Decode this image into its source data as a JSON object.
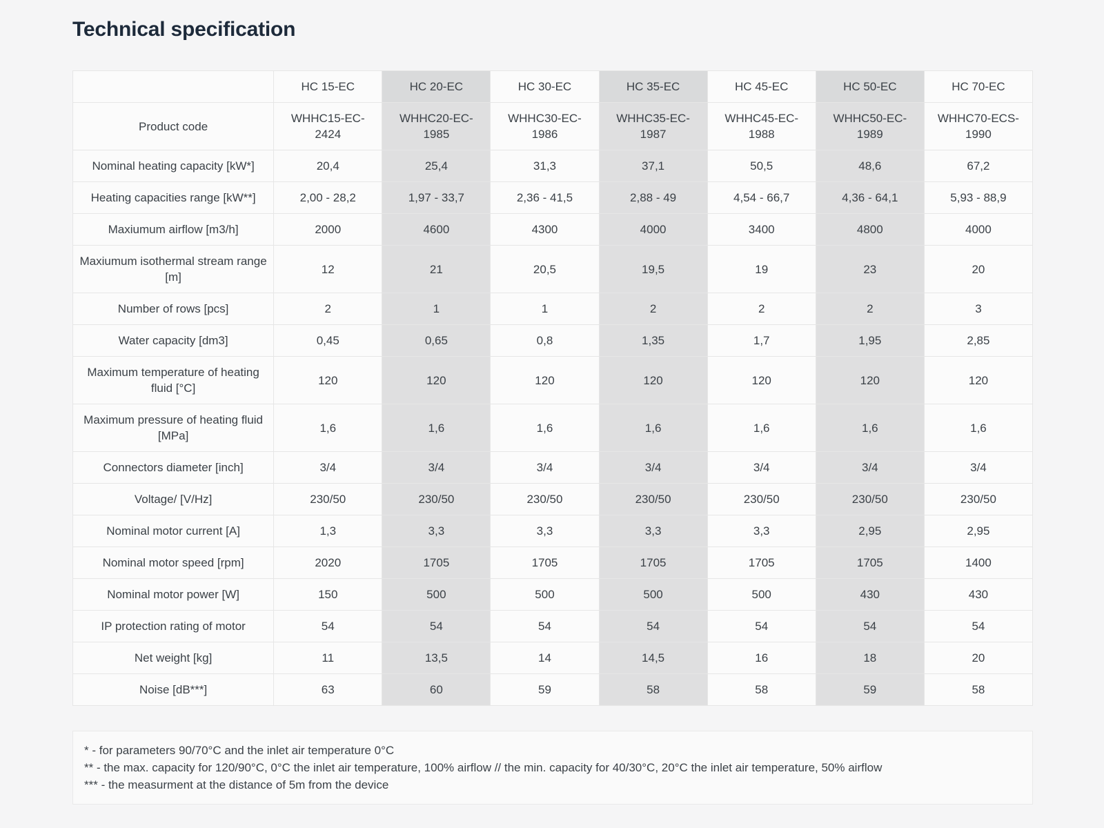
{
  "page_title": "Technical specification",
  "table": {
    "corner_label": "",
    "columns": [
      "HC 15-EC",
      "HC 20-EC",
      "HC 30-EC",
      "HC 35-EC",
      "HC 45-EC",
      "HC 50-EC",
      "HC 70-EC"
    ],
    "striped_column_indexes": [
      1,
      3,
      5
    ],
    "rows": [
      {
        "label": "Product code",
        "values": [
          "WHHC15-EC-\n2424",
          "WHHC20-EC-\n1985",
          "WHHC30-EC-\n1986",
          "WHHC35-EC-\n1987",
          "WHHC45-EC-\n1988",
          "WHHC50-EC-\n1989",
          "WHHC70-ECS-\n1990"
        ]
      },
      {
        "label": "Nominal heating capacity [kW*]",
        "values": [
          "20,4",
          "25,4",
          "31,3",
          "37,1",
          "50,5",
          "48,6",
          "67,2"
        ]
      },
      {
        "label": "Heating capacities range [kW**]",
        "values": [
          "2,00 - 28,2",
          "1,97 - 33,7",
          "2,36 - 41,5",
          "2,88 - 49",
          "4,54 - 66,7",
          "4,36 - 64,1",
          "5,93 - 88,9"
        ]
      },
      {
        "label": "Maxiumum airflow [m3/h]",
        "values": [
          "2000",
          "4600",
          "4300",
          "4000",
          "3400",
          "4800",
          "4000"
        ]
      },
      {
        "label": "Maxiumum isothermal stream range [m]",
        "values": [
          "12",
          "21",
          "20,5",
          "19,5",
          "19",
          "23",
          "20"
        ]
      },
      {
        "label": "Number of rows [pcs]",
        "values": [
          "2",
          "1",
          "1",
          "2",
          "2",
          "2",
          "3"
        ]
      },
      {
        "label": "Water capacity [dm3]",
        "values": [
          "0,45",
          "0,65",
          "0,8",
          "1,35",
          "1,7",
          "1,95",
          "2,85"
        ]
      },
      {
        "label": "Maximum temperature of heating fluid [°C]",
        "values": [
          "120",
          "120",
          "120",
          "120",
          "120",
          "120",
          "120"
        ]
      },
      {
        "label": "Maximum pressure of heating fluid [MPa]",
        "values": [
          "1,6",
          "1,6",
          "1,6",
          "1,6",
          "1,6",
          "1,6",
          "1,6"
        ]
      },
      {
        "label": "Connectors diameter [inch]",
        "values": [
          "3/4",
          "3/4",
          "3/4",
          "3/4",
          "3/4",
          "3/4",
          "3/4"
        ]
      },
      {
        "label": "Voltage/ [V/Hz]",
        "values": [
          "230/50",
          "230/50",
          "230/50",
          "230/50",
          "230/50",
          "230/50",
          "230/50"
        ]
      },
      {
        "label": "Nominal motor current [A]",
        "values": [
          "1,3",
          "3,3",
          "3,3",
          "3,3",
          "3,3",
          "2,95",
          "2,95"
        ]
      },
      {
        "label": "Nominal motor speed [rpm]",
        "values": [
          "2020",
          "1705",
          "1705",
          "1705",
          "1705",
          "1705",
          "1400"
        ]
      },
      {
        "label": "Nominal motor power [W]",
        "values": [
          "150",
          "500",
          "500",
          "500",
          "500",
          "430",
          "430"
        ]
      },
      {
        "label": "IP protection rating of motor",
        "values": [
          "54",
          "54",
          "54",
          "54",
          "54",
          "54",
          "54"
        ]
      },
      {
        "label": "Net weight [kg]",
        "values": [
          "11",
          "13,5",
          "14",
          "14,5",
          "16",
          "18",
          "20"
        ]
      },
      {
        "label": "Noise [dB***]",
        "values": [
          "63",
          "60",
          "59",
          "58",
          "58",
          "59",
          "58"
        ]
      }
    ]
  },
  "footnotes": [
    "* - for parameters 90/70°C and the inlet air temperature 0°C",
    "** - the max. capacity for 120/90°C, 0°C the inlet air temperature, 100% airflow // the min. capacity for 40/30°C, 20°C the inlet air temperature, 50% airflow",
    "*** - the measurment at the distance of 5m from the device"
  ],
  "colors": {
    "page_background": "#f5f5f6",
    "cell_background": "#fbfbfb",
    "stripe_column": "#dfdfe0",
    "stripe_column_header": "#d9dadb",
    "border": "#e6e6e6",
    "text": "#3b4147",
    "title": "#1d2a3a"
  }
}
